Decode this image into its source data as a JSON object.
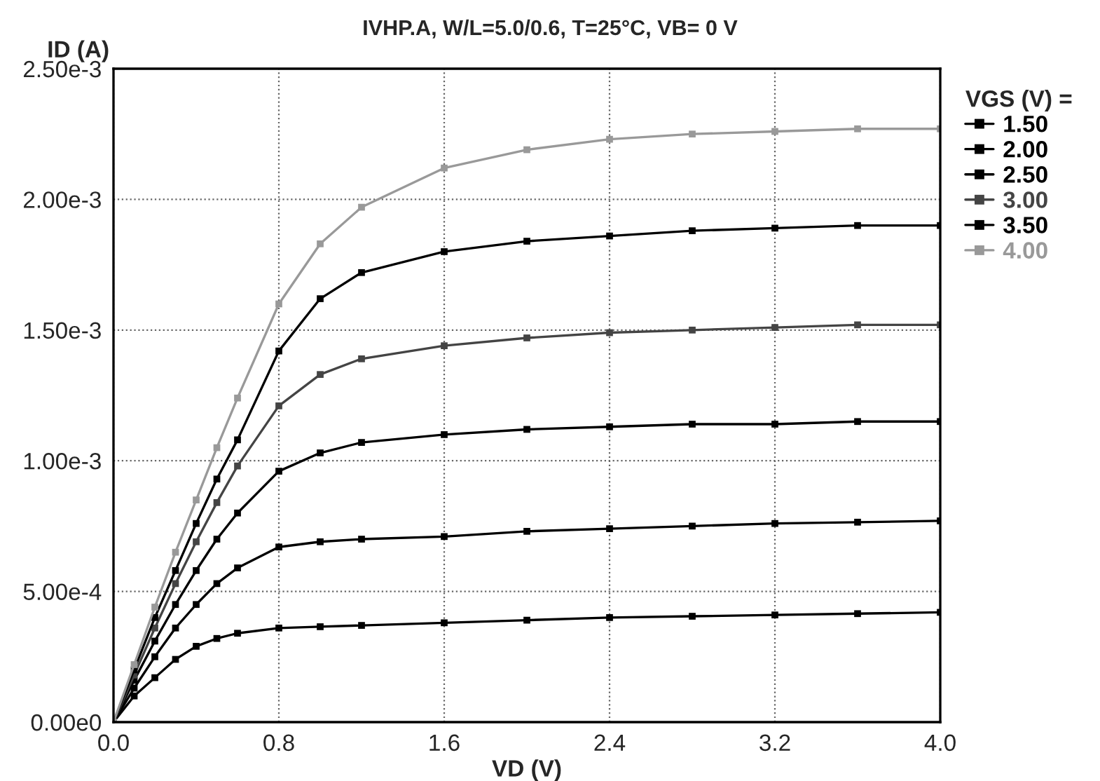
{
  "chart_data": {
    "type": "line",
    "title": "IVHP.A, W/L=5.0/0.6, T=25°C, VB= 0 V",
    "xlabel": "VD (V)",
    "ylabel": "ID (A)",
    "legend_title": "VGS (V) =",
    "x": [
      0,
      0.1,
      0.2,
      0.3,
      0.4,
      0.5,
      0.6,
      0.8,
      1.0,
      1.2,
      1.6,
      2.0,
      2.4,
      2.8,
      3.2,
      3.6,
      4.0
    ],
    "series": [
      {
        "name": "1.50",
        "color": "#000000",
        "values": [
          0,
          0.0001,
          0.00017,
          0.00024,
          0.00029,
          0.00032,
          0.00034,
          0.00036,
          0.000365,
          0.00037,
          0.00038,
          0.00039,
          0.0004,
          0.000405,
          0.00041,
          0.000415,
          0.00042
        ]
      },
      {
        "name": "2.00",
        "color": "#000000",
        "values": [
          0,
          0.00013,
          0.00025,
          0.00036,
          0.00045,
          0.00053,
          0.00059,
          0.00067,
          0.00069,
          0.0007,
          0.00071,
          0.00073,
          0.00074,
          0.00075,
          0.00076,
          0.000765,
          0.00077
        ]
      },
      {
        "name": "2.50",
        "color": "#000000",
        "values": [
          0,
          0.00016,
          0.00031,
          0.00045,
          0.00058,
          0.0007,
          0.0008,
          0.00096,
          0.00103,
          0.00107,
          0.0011,
          0.00112,
          0.00113,
          0.00114,
          0.00114,
          0.00115,
          0.00115
        ]
      },
      {
        "name": "3.00",
        "color": "#444444",
        "values": [
          0,
          0.00018,
          0.00036,
          0.00053,
          0.00069,
          0.00084,
          0.00098,
          0.00121,
          0.00133,
          0.00139,
          0.00144,
          0.00147,
          0.00149,
          0.0015,
          0.00151,
          0.00152,
          0.00152
        ]
      },
      {
        "name": "3.50",
        "color": "#000000",
        "values": [
          0,
          0.0002,
          0.0004,
          0.00058,
          0.00076,
          0.00093,
          0.00108,
          0.00142,
          0.00162,
          0.00172,
          0.0018,
          0.00184,
          0.00186,
          0.00188,
          0.00189,
          0.0019,
          0.0019
        ]
      },
      {
        "name": "4.00",
        "color": "#999999",
        "values": [
          0,
          0.00022,
          0.00044,
          0.00065,
          0.00085,
          0.00105,
          0.00124,
          0.0016,
          0.00183,
          0.00197,
          0.00212,
          0.00219,
          0.00223,
          0.00225,
          0.00226,
          0.00227,
          0.00227
        ]
      }
    ],
    "xlim": [
      0,
      4.0
    ],
    "ylim": [
      0,
      0.0025
    ],
    "xticks": [
      {
        "value": 0,
        "label": "0.0"
      },
      0.8,
      1.6,
      2.4,
      3.2,
      {
        "value": 4,
        "label": "4.0"
      }
    ],
    "yticks": [
      {
        "value": 0,
        "label": "0.00e0"
      },
      {
        "value": 0.0005,
        "label": "5.00e-4"
      },
      {
        "value": 0.001,
        "label": "1.00e-3"
      },
      {
        "value": 0.0015,
        "label": "1.50e-3"
      },
      {
        "value": 0.002,
        "label": "2.00e-3"
      },
      {
        "value": 0.0025,
        "label": "2.50e-3"
      }
    ],
    "grid": true,
    "legend": "right",
    "marker": "square",
    "line_style": "solid"
  }
}
